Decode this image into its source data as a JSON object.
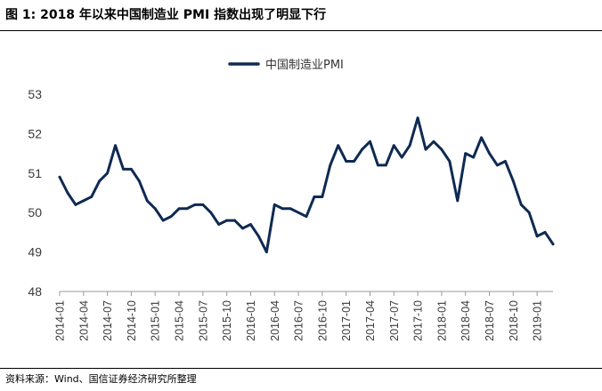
{
  "figure": {
    "title": "图 1:  2018 年以来中国制造业 PMI 指数出现了明显下行",
    "source": "资料来源：Wind、国信证券经济研究所整理"
  },
  "chart_data": {
    "type": "line",
    "title": "",
    "xlabel": "",
    "ylabel": "",
    "ylim": [
      48,
      53
    ],
    "yticks": [
      48,
      49,
      50,
      51,
      52,
      53
    ],
    "grid": false,
    "legend_position": "top-center",
    "x_tick_labels": [
      "2014-01",
      "2014-04",
      "2014-07",
      "2014-10",
      "2015-01",
      "2015-04",
      "2015-07",
      "2015-10",
      "2016-01",
      "2016-04",
      "2016-07",
      "2016-10",
      "2017-01",
      "2017-04",
      "2017-07",
      "2017-10",
      "2018-01",
      "2018-04",
      "2018-07",
      "2018-10",
      "2019-01"
    ],
    "x": [
      "2014-01",
      "2014-02",
      "2014-03",
      "2014-04",
      "2014-05",
      "2014-06",
      "2014-07",
      "2014-08",
      "2014-09",
      "2014-10",
      "2014-11",
      "2014-12",
      "2015-01",
      "2015-02",
      "2015-03",
      "2015-04",
      "2015-05",
      "2015-06",
      "2015-07",
      "2015-08",
      "2015-09",
      "2015-10",
      "2015-11",
      "2015-12",
      "2016-01",
      "2016-02",
      "2016-03",
      "2016-04",
      "2016-05",
      "2016-06",
      "2016-07",
      "2016-08",
      "2016-09",
      "2016-10",
      "2016-11",
      "2016-12",
      "2017-01",
      "2017-02",
      "2017-03",
      "2017-04",
      "2017-05",
      "2017-06",
      "2017-07",
      "2017-08",
      "2017-09",
      "2017-10",
      "2017-11",
      "2017-12",
      "2018-01",
      "2018-02",
      "2018-03",
      "2018-04",
      "2018-05",
      "2018-06",
      "2018-07",
      "2018-08",
      "2018-09",
      "2018-10",
      "2018-11",
      "2018-12",
      "2019-01",
      "2019-02",
      "2019-03"
    ],
    "series": [
      {
        "name": "中国制造业PMI",
        "color": "#0f2a52",
        "values": [
          50.9,
          50.5,
          50.2,
          50.3,
          50.4,
          50.8,
          51.0,
          51.7,
          51.1,
          51.1,
          50.8,
          50.3,
          50.1,
          49.8,
          49.9,
          50.1,
          50.1,
          50.2,
          50.2,
          50.0,
          49.7,
          49.8,
          49.8,
          49.6,
          49.7,
          49.4,
          49.0,
          50.2,
          50.1,
          50.1,
          50.0,
          49.9,
          50.4,
          50.4,
          51.2,
          51.7,
          51.3,
          51.3,
          51.6,
          51.8,
          51.2,
          51.2,
          51.7,
          51.4,
          51.7,
          52.4,
          51.6,
          51.8,
          51.6,
          51.3,
          50.3,
          51.5,
          51.4,
          51.9,
          51.5,
          51.2,
          51.3,
          50.8,
          50.2,
          50.0,
          49.4,
          49.5,
          49.2
        ]
      }
    ]
  }
}
